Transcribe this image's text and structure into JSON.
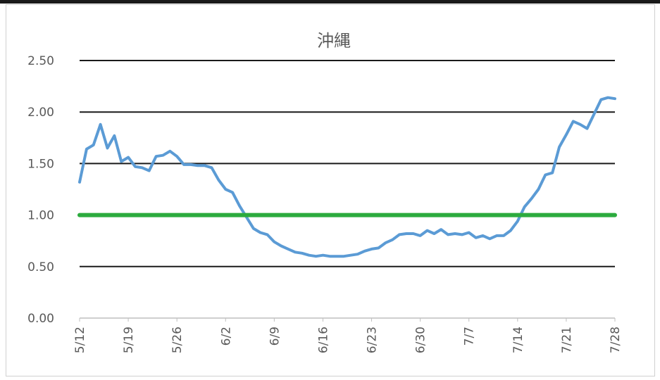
{
  "chart_data": {
    "type": "line",
    "title": "沖縄",
    "xlabel": "",
    "ylabel": "",
    "ylim": [
      0,
      2.5
    ],
    "ytick_labels": [
      "0.00",
      "0.50",
      "1.00",
      "1.50",
      "2.00",
      "2.50"
    ],
    "xtick_labels": [
      "5/12",
      "5/19",
      "5/26",
      "6/2",
      "6/9",
      "6/16",
      "6/23",
      "6/30",
      "7/7",
      "7/14",
      "7/21",
      "7/28"
    ],
    "grid": true,
    "x": [
      "5/12",
      "5/13",
      "5/14",
      "5/15",
      "5/16",
      "5/17",
      "5/18",
      "5/19",
      "5/20",
      "5/21",
      "5/22",
      "5/23",
      "5/24",
      "5/25",
      "5/26",
      "5/27",
      "5/28",
      "5/29",
      "5/30",
      "5/31",
      "6/1",
      "6/2",
      "6/3",
      "6/4",
      "6/5",
      "6/6",
      "6/7",
      "6/8",
      "6/9",
      "6/10",
      "6/11",
      "6/12",
      "6/13",
      "6/14",
      "6/15",
      "6/16",
      "6/17",
      "6/18",
      "6/19",
      "6/20",
      "6/21",
      "6/22",
      "6/23",
      "6/24",
      "6/25",
      "6/26",
      "6/27",
      "6/28",
      "6/29",
      "6/30",
      "7/1",
      "7/2",
      "7/3",
      "7/4",
      "7/5",
      "7/6",
      "7/7",
      "7/8",
      "7/9",
      "7/10",
      "7/11",
      "7/12",
      "7/13",
      "7/14",
      "7/15",
      "7/16",
      "7/17",
      "7/18",
      "7/19",
      "7/20",
      "7/21",
      "7/22",
      "7/23",
      "7/24",
      "7/25",
      "7/26",
      "7/27",
      "7/28"
    ],
    "series": [
      {
        "name": "",
        "color": "#5b9bd5",
        "values": [
          1.32,
          1.64,
          1.68,
          1.88,
          1.65,
          1.77,
          1.52,
          1.56,
          1.47,
          1.46,
          1.43,
          1.57,
          1.58,
          1.62,
          1.57,
          1.49,
          1.49,
          1.48,
          1.48,
          1.46,
          1.34,
          1.25,
          1.22,
          1.09,
          0.98,
          0.87,
          0.83,
          0.81,
          0.74,
          0.7,
          0.67,
          0.64,
          0.63,
          0.61,
          0.6,
          0.61,
          0.6,
          0.6,
          0.6,
          0.61,
          0.62,
          0.65,
          0.67,
          0.68,
          0.73,
          0.76,
          0.81,
          0.82,
          0.82,
          0.8,
          0.85,
          0.82,
          0.86,
          0.81,
          0.82,
          0.81,
          0.83,
          0.78,
          0.8,
          0.77,
          0.8,
          0.8,
          0.85,
          0.94,
          1.08,
          1.16,
          1.25,
          1.39,
          1.41,
          1.66,
          1.78,
          1.91,
          1.88,
          1.84,
          1.98,
          2.12,
          2.14,
          2.13
        ]
      },
      {
        "name": "",
        "color": "#2cab3e",
        "values": [
          1.0,
          1.0,
          1.0,
          1.0,
          1.0,
          1.0,
          1.0,
          1.0,
          1.0,
          1.0,
          1.0,
          1.0,
          1.0,
          1.0,
          1.0,
          1.0,
          1.0,
          1.0,
          1.0,
          1.0,
          1.0,
          1.0,
          1.0,
          1.0,
          1.0,
          1.0,
          1.0,
          1.0,
          1.0,
          1.0,
          1.0,
          1.0,
          1.0,
          1.0,
          1.0,
          1.0,
          1.0,
          1.0,
          1.0,
          1.0,
          1.0,
          1.0,
          1.0,
          1.0,
          1.0,
          1.0,
          1.0,
          1.0,
          1.0,
          1.0,
          1.0,
          1.0,
          1.0,
          1.0,
          1.0,
          1.0,
          1.0,
          1.0,
          1.0,
          1.0,
          1.0,
          1.0,
          1.0,
          1.0,
          1.0,
          1.0,
          1.0,
          1.0,
          1.0,
          1.0,
          1.0,
          1.0,
          1.0,
          1.0,
          1.0,
          1.0,
          1.0,
          1.0
        ]
      }
    ]
  }
}
